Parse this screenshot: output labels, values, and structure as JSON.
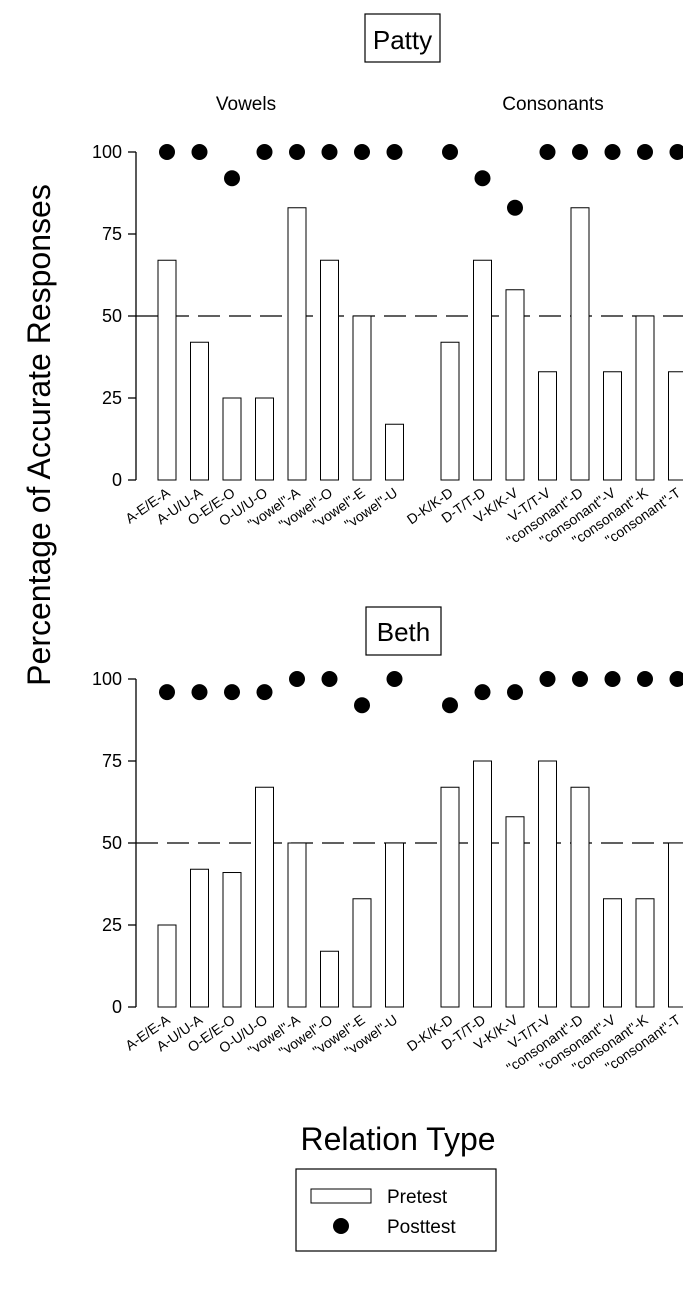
{
  "chart_data": {
    "type": "bar",
    "ylabel": "Percentage of Accurate Responses",
    "xlabel": "Relation Type",
    "ylim": [
      0,
      100
    ],
    "yticks": [
      0,
      25,
      50,
      75,
      100
    ],
    "reference_line": 50,
    "legend": {
      "placement": "bottom-center",
      "pretest_label": "Pretest",
      "posttest_label": "Posttest"
    },
    "group_labels": [
      "Vowels",
      "Consonants"
    ],
    "vowel_categories": [
      "A-E/E-A",
      "A-U/U-A",
      "O-E/E-O",
      "O-U/U-O",
      "\"vowel\"-A",
      "\"vowel\"-O",
      "\"vowel\"-E",
      "\"vowel\"-U"
    ],
    "consonant_categories": [
      "D-K/K-D",
      "D-T/T-D",
      "V-K/K-V",
      "V-T/T-V",
      "\"consonant\"-D",
      "\"consonant\"-V",
      "\"consonant\"-K",
      "\"consonant\"-T"
    ],
    "panels": [
      {
        "title": "Patty",
        "vowels": {
          "pretest": [
            67,
            42,
            25,
            25,
            83,
            67,
            50,
            17
          ],
          "posttest": [
            100,
            100,
            92,
            100,
            100,
            100,
            100,
            100
          ]
        },
        "consonants": {
          "pretest": [
            42,
            67,
            58,
            33,
            83,
            33,
            50,
            33
          ],
          "posttest": [
            100,
            92,
            83,
            100,
            100,
            100,
            100,
            100
          ]
        }
      },
      {
        "title": "Beth",
        "vowels": {
          "pretest": [
            25,
            42,
            41,
            67,
            50,
            17,
            33,
            50
          ],
          "posttest": [
            96,
            96,
            96,
            96,
            100,
            100,
            92,
            100
          ]
        },
        "consonants": {
          "pretest": [
            67,
            75,
            58,
            75,
            67,
            33,
            33,
            50
          ],
          "posttest": [
            92,
            96,
            96,
            100,
            100,
            100,
            100,
            100
          ]
        }
      }
    ]
  }
}
